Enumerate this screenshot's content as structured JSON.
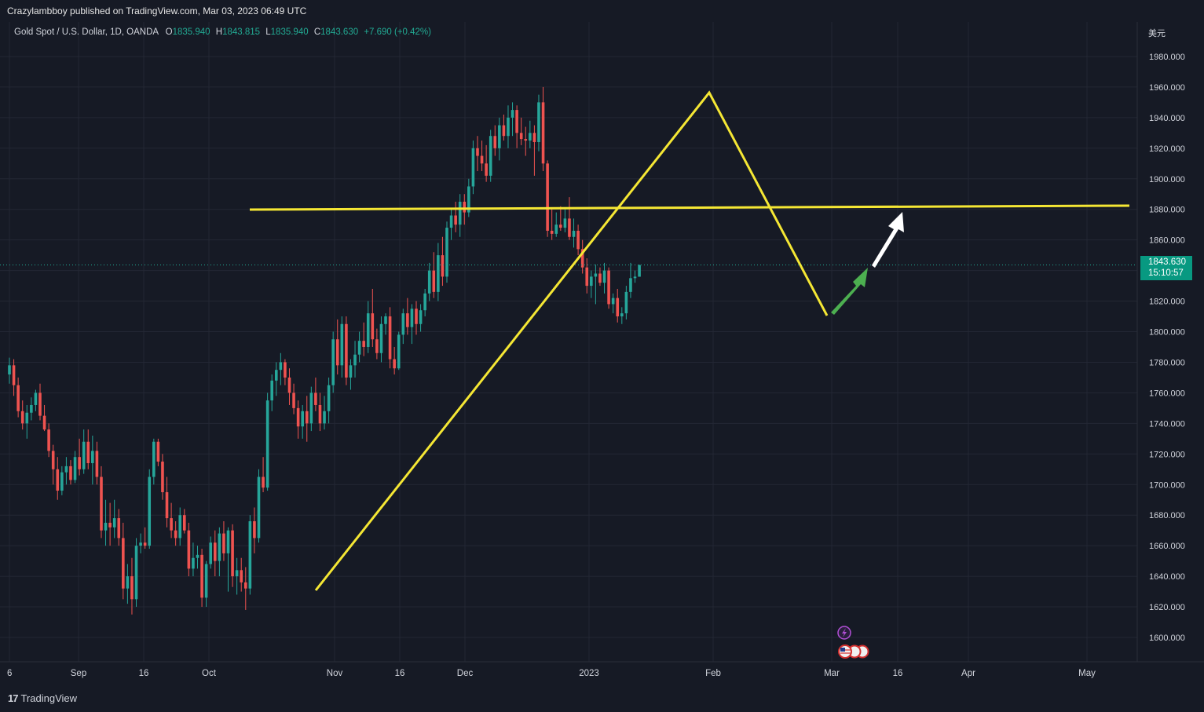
{
  "header": {
    "published": "Crazylambboy published on TradingView.com, Mar 03, 2023 06:49 UTC"
  },
  "legend": {
    "symbol": "Gold Spot / U.S. Dollar, 1D, OANDA",
    "o_label": "O",
    "o_value": "1835.940",
    "h_label": "H",
    "h_value": "1843.815",
    "l_label": "L",
    "l_value": "1835.940",
    "c_label": "C",
    "c_value": "1843.630",
    "change": "+7.690 (+0.42%)"
  },
  "currency_label": "美元",
  "price_badge": {
    "price": "1843.630",
    "countdown": "15:10:57"
  },
  "footer": {
    "logo_text": "TradingView"
  },
  "colors": {
    "background": "#161a25",
    "up": "#26a69a",
    "down": "#ef5350",
    "drawing_yellow": "#f5e734",
    "arrow_green": "#4caf50",
    "arrow_white": "#ffffff",
    "badge": "#089981"
  },
  "events": {
    "icons": [
      "lightning-icon",
      "us-flag-icon",
      "us-flag-icon",
      "us-flag-icon"
    ]
  },
  "chart_data": {
    "type": "candlestick",
    "title": "Gold Spot / U.S. Dollar, 1D, OANDA",
    "grid": true,
    "ylim": [
      1585,
      1992
    ],
    "yticks": [
      "1980.000",
      "1960.000",
      "1940.000",
      "1920.000",
      "1900.000",
      "1880.000",
      "1860.000",
      "1840.000",
      "1820.000",
      "1800.000",
      "1780.000",
      "1760.000",
      "1740.000",
      "1720.000",
      "1700.000",
      "1680.000",
      "1660.000",
      "1640.000",
      "1620.000",
      "1600.000"
    ],
    "xticks": [
      "6",
      "Sep",
      "16",
      "Oct",
      "Nov",
      "16",
      "Dec",
      "2023",
      "Feb",
      "Mar",
      "16",
      "Apr",
      "May"
    ],
    "last_price": 1843.63,
    "candles": [
      {
        "d": "Aug 26",
        "o": 1772,
        "h": 1783,
        "l": 1766,
        "c": 1778
      },
      {
        "d": "Aug 29",
        "o": 1778,
        "h": 1782,
        "l": 1758,
        "c": 1765
      },
      {
        "d": "Aug 30",
        "o": 1765,
        "h": 1770,
        "l": 1744,
        "c": 1748
      },
      {
        "d": "Aug 31",
        "o": 1748,
        "h": 1755,
        "l": 1736,
        "c": 1740
      },
      {
        "d": "Sep 1",
        "o": 1740,
        "h": 1752,
        "l": 1730,
        "c": 1747
      },
      {
        "d": "Sep 2",
        "o": 1747,
        "h": 1757,
        "l": 1742,
        "c": 1752
      },
      {
        "d": "Sep 5",
        "o": 1752,
        "h": 1762,
        "l": 1748,
        "c": 1760
      },
      {
        "d": "Sep 6",
        "o": 1760,
        "h": 1766,
        "l": 1742,
        "c": 1745
      },
      {
        "d": "Sep 7",
        "o": 1745,
        "h": 1752,
        "l": 1735,
        "c": 1736
      },
      {
        "d": "Sep 8",
        "o": 1736,
        "h": 1740,
        "l": 1718,
        "c": 1722
      },
      {
        "d": "Sep 9",
        "o": 1722,
        "h": 1726,
        "l": 1700,
        "c": 1710
      },
      {
        "d": "Sep 12",
        "o": 1710,
        "h": 1718,
        "l": 1690,
        "c": 1696
      },
      {
        "d": "Sep 13",
        "o": 1696,
        "h": 1712,
        "l": 1693,
        "c": 1708
      },
      {
        "d": "Sep 14",
        "o": 1708,
        "h": 1718,
        "l": 1700,
        "c": 1712
      },
      {
        "d": "Sep 15",
        "o": 1712,
        "h": 1716,
        "l": 1700,
        "c": 1703
      },
      {
        "d": "Sep 16",
        "o": 1703,
        "h": 1722,
        "l": 1701,
        "c": 1718
      },
      {
        "d": "Sep 19",
        "o": 1718,
        "h": 1730,
        "l": 1706,
        "c": 1710
      },
      {
        "d": "Sep 20",
        "o": 1710,
        "h": 1736,
        "l": 1707,
        "c": 1728
      },
      {
        "d": "Sep 21",
        "o": 1728,
        "h": 1736,
        "l": 1710,
        "c": 1714
      },
      {
        "d": "Sep 22",
        "o": 1714,
        "h": 1732,
        "l": 1700,
        "c": 1722
      },
      {
        "d": "Sep 23",
        "o": 1722,
        "h": 1728,
        "l": 1700,
        "c": 1705
      },
      {
        "d": "Sep 26",
        "o": 1705,
        "h": 1712,
        "l": 1665,
        "c": 1670
      },
      {
        "d": "Sep 27",
        "o": 1670,
        "h": 1690,
        "l": 1660,
        "c": 1675
      },
      {
        "d": "Sep 28",
        "o": 1675,
        "h": 1688,
        "l": 1660,
        "c": 1672
      },
      {
        "d": "Sep 29",
        "o": 1672,
        "h": 1690,
        "l": 1665,
        "c": 1678
      },
      {
        "d": "Sep 30",
        "o": 1678,
        "h": 1684,
        "l": 1660,
        "c": 1665
      },
      {
        "d": "Oct 3",
        "o": 1665,
        "h": 1675,
        "l": 1625,
        "c": 1632
      },
      {
        "d": "Oct 4",
        "o": 1632,
        "h": 1648,
        "l": 1622,
        "c": 1640
      },
      {
        "d": "Oct 5",
        "o": 1640,
        "h": 1652,
        "l": 1615,
        "c": 1625
      },
      {
        "d": "Oct 6",
        "o": 1625,
        "h": 1665,
        "l": 1620,
        "c": 1660
      },
      {
        "d": "Oct 7",
        "o": 1660,
        "h": 1668,
        "l": 1655,
        "c": 1662
      },
      {
        "d": "Oct 10",
        "o": 1662,
        "h": 1672,
        "l": 1658,
        "c": 1660
      },
      {
        "d": "Oct 11",
        "o": 1660,
        "h": 1710,
        "l": 1658,
        "c": 1705
      },
      {
        "d": "Oct 12",
        "o": 1705,
        "h": 1730,
        "l": 1700,
        "c": 1728
      },
      {
        "d": "Oct 13",
        "o": 1728,
        "h": 1730,
        "l": 1712,
        "c": 1715
      },
      {
        "d": "Oct 14",
        "o": 1715,
        "h": 1720,
        "l": 1690,
        "c": 1695
      },
      {
        "d": "Oct 17",
        "o": 1695,
        "h": 1705,
        "l": 1672,
        "c": 1678
      },
      {
        "d": "Oct 18",
        "o": 1678,
        "h": 1688,
        "l": 1665,
        "c": 1670
      },
      {
        "d": "Oct 19",
        "o": 1670,
        "h": 1676,
        "l": 1660,
        "c": 1665
      },
      {
        "d": "Oct 20",
        "o": 1665,
        "h": 1685,
        "l": 1660,
        "c": 1680
      },
      {
        "d": "Oct 21",
        "o": 1680,
        "h": 1684,
        "l": 1668,
        "c": 1670
      },
      {
        "d": "Oct 24",
        "o": 1670,
        "h": 1675,
        "l": 1640,
        "c": 1645
      },
      {
        "d": "Oct 25",
        "o": 1645,
        "h": 1662,
        "l": 1640,
        "c": 1652
      },
      {
        "d": "Oct 26",
        "o": 1652,
        "h": 1660,
        "l": 1645,
        "c": 1654
      },
      {
        "d": "Oct 27",
        "o": 1654,
        "h": 1658,
        "l": 1620,
        "c": 1626
      },
      {
        "d": "Oct 28",
        "o": 1626,
        "h": 1650,
        "l": 1620,
        "c": 1648
      },
      {
        "d": "Oct 31",
        "o": 1648,
        "h": 1666,
        "l": 1645,
        "c": 1662
      },
      {
        "d": "Nov 1",
        "o": 1662,
        "h": 1670,
        "l": 1640,
        "c": 1650
      },
      {
        "d": "Nov 2",
        "o": 1650,
        "h": 1672,
        "l": 1640,
        "c": 1668
      },
      {
        "d": "Nov 3",
        "o": 1668,
        "h": 1676,
        "l": 1650,
        "c": 1655
      },
      {
        "d": "Nov 4",
        "o": 1655,
        "h": 1672,
        "l": 1630,
        "c": 1670
      },
      {
        "d": "Nov 7",
        "o": 1670,
        "h": 1674,
        "l": 1633,
        "c": 1640
      },
      {
        "d": "Nov 8",
        "o": 1640,
        "h": 1652,
        "l": 1628,
        "c": 1644
      },
      {
        "d": "Nov 9",
        "o": 1644,
        "h": 1652,
        "l": 1630,
        "c": 1636
      },
      {
        "d": "Nov 10",
        "o": 1636,
        "h": 1646,
        "l": 1618,
        "c": 1632
      },
      {
        "d": "Nov 11",
        "o": 1632,
        "h": 1680,
        "l": 1628,
        "c": 1676
      },
      {
        "d": "Nov 14",
        "o": 1676,
        "h": 1685,
        "l": 1655,
        "c": 1665
      },
      {
        "d": "Nov 15",
        "o": 1665,
        "h": 1710,
        "l": 1662,
        "c": 1705
      },
      {
        "d": "Nov 16",
        "o": 1705,
        "h": 1718,
        "l": 1695,
        "c": 1698
      },
      {
        "d": "Nov 17",
        "o": 1698,
        "h": 1760,
        "l": 1696,
        "c": 1755
      },
      {
        "d": "Nov 18",
        "o": 1755,
        "h": 1772,
        "l": 1748,
        "c": 1768
      },
      {
        "d": "Nov 21",
        "o": 1768,
        "h": 1780,
        "l": 1758,
        "c": 1775
      },
      {
        "d": "Nov 22",
        "o": 1775,
        "h": 1786,
        "l": 1765,
        "c": 1780
      },
      {
        "d": "Nov 23",
        "o": 1780,
        "h": 1782,
        "l": 1765,
        "c": 1770
      },
      {
        "d": "Nov 24",
        "o": 1770,
        "h": 1776,
        "l": 1752,
        "c": 1760
      },
      {
        "d": "Nov 25",
        "o": 1760,
        "h": 1766,
        "l": 1746,
        "c": 1750
      },
      {
        "d": "Nov 28",
        "o": 1750,
        "h": 1755,
        "l": 1730,
        "c": 1738
      },
      {
        "d": "Nov 29",
        "o": 1738,
        "h": 1752,
        "l": 1730,
        "c": 1748
      },
      {
        "d": "Nov 30",
        "o": 1748,
        "h": 1758,
        "l": 1728,
        "c": 1740
      },
      {
        "d": "Dec 1",
        "o": 1740,
        "h": 1764,
        "l": 1735,
        "c": 1760
      },
      {
        "d": "Dec 2",
        "o": 1760,
        "h": 1770,
        "l": 1748,
        "c": 1752
      },
      {
        "d": "Dec 5",
        "o": 1752,
        "h": 1760,
        "l": 1735,
        "c": 1740
      },
      {
        "d": "Dec 6",
        "o": 1740,
        "h": 1758,
        "l": 1736,
        "c": 1748
      },
      {
        "d": "Dec 7",
        "o": 1748,
        "h": 1770,
        "l": 1740,
        "c": 1765
      },
      {
        "d": "Dec 8",
        "o": 1765,
        "h": 1800,
        "l": 1760,
        "c": 1795
      },
      {
        "d": "Dec 9",
        "o": 1795,
        "h": 1808,
        "l": 1772,
        "c": 1778
      },
      {
        "d": "Dec 12",
        "o": 1778,
        "h": 1810,
        "l": 1770,
        "c": 1805
      },
      {
        "d": "Dec 13",
        "o": 1805,
        "h": 1810,
        "l": 1765,
        "c": 1770
      },
      {
        "d": "Dec 14",
        "o": 1770,
        "h": 1782,
        "l": 1762,
        "c": 1778
      },
      {
        "d": "Dec 15",
        "o": 1778,
        "h": 1794,
        "l": 1770,
        "c": 1785
      },
      {
        "d": "Dec 16",
        "o": 1785,
        "h": 1800,
        "l": 1780,
        "c": 1794
      },
      {
        "d": "Dec 19",
        "o": 1794,
        "h": 1806,
        "l": 1784,
        "c": 1790
      },
      {
        "d": "Dec 20",
        "o": 1790,
        "h": 1820,
        "l": 1786,
        "c": 1812
      },
      {
        "d": "Dec 21",
        "o": 1812,
        "h": 1828,
        "l": 1790,
        "c": 1795
      },
      {
        "d": "Dec 22",
        "o": 1795,
        "h": 1802,
        "l": 1782,
        "c": 1786
      },
      {
        "d": "Dec 23",
        "o": 1786,
        "h": 1810,
        "l": 1780,
        "c": 1805
      },
      {
        "d": "Dec 26",
        "o": 1805,
        "h": 1812,
        "l": 1798,
        "c": 1810
      },
      {
        "d": "Dec 27",
        "o": 1810,
        "h": 1816,
        "l": 1776,
        "c": 1782
      },
      {
        "d": "Dec 28",
        "o": 1782,
        "h": 1790,
        "l": 1772,
        "c": 1776
      },
      {
        "d": "Dec 29",
        "o": 1776,
        "h": 1800,
        "l": 1775,
        "c": 1798
      },
      {
        "d": "Dec 30",
        "o": 1798,
        "h": 1815,
        "l": 1792,
        "c": 1812
      },
      {
        "d": "Jan 2",
        "o": 1812,
        "h": 1822,
        "l": 1798,
        "c": 1803
      },
      {
        "d": "Jan 3",
        "o": 1803,
        "h": 1818,
        "l": 1792,
        "c": 1815
      },
      {
        "d": "Jan 4",
        "o": 1815,
        "h": 1820,
        "l": 1798,
        "c": 1805
      },
      {
        "d": "Jan 5",
        "o": 1805,
        "h": 1818,
        "l": 1800,
        "c": 1814
      },
      {
        "d": "Jan 6",
        "o": 1814,
        "h": 1828,
        "l": 1810,
        "c": 1825
      },
      {
        "d": "Jan 9",
        "o": 1825,
        "h": 1845,
        "l": 1820,
        "c": 1840
      },
      {
        "d": "Jan 10",
        "o": 1840,
        "h": 1852,
        "l": 1822,
        "c": 1826
      },
      {
        "d": "Jan 11",
        "o": 1826,
        "h": 1858,
        "l": 1820,
        "c": 1850
      },
      {
        "d": "Jan 12",
        "o": 1850,
        "h": 1862,
        "l": 1830,
        "c": 1836
      },
      {
        "d": "Jan 13",
        "o": 1836,
        "h": 1872,
        "l": 1832,
        "c": 1868
      },
      {
        "d": "Jan 16",
        "o": 1868,
        "h": 1880,
        "l": 1860,
        "c": 1876
      },
      {
        "d": "Jan 17",
        "o": 1876,
        "h": 1885,
        "l": 1865,
        "c": 1870
      },
      {
        "d": "Jan 18",
        "o": 1870,
        "h": 1890,
        "l": 1862,
        "c": 1885
      },
      {
        "d": "Jan 19",
        "o": 1885,
        "h": 1890,
        "l": 1870,
        "c": 1878
      },
      {
        "d": "Jan 20",
        "o": 1878,
        "h": 1900,
        "l": 1875,
        "c": 1895
      },
      {
        "d": "Jan 23",
        "o": 1895,
        "h": 1925,
        "l": 1890,
        "c": 1920
      },
      {
        "d": "Jan 24",
        "o": 1920,
        "h": 1928,
        "l": 1905,
        "c": 1915
      },
      {
        "d": "Jan 25",
        "o": 1915,
        "h": 1925,
        "l": 1905,
        "c": 1910
      },
      {
        "d": "Jan 26",
        "o": 1910,
        "h": 1922,
        "l": 1898,
        "c": 1902
      },
      {
        "d": "Jan 27",
        "o": 1902,
        "h": 1932,
        "l": 1898,
        "c": 1928
      },
      {
        "d": "Jan 30",
        "o": 1928,
        "h": 1935,
        "l": 1915,
        "c": 1920
      },
      {
        "d": "Jan 31",
        "o": 1920,
        "h": 1940,
        "l": 1912,
        "c": 1935
      },
      {
        "d": "Feb 1",
        "o": 1935,
        "h": 1942,
        "l": 1925,
        "c": 1928
      },
      {
        "d": "Feb 2",
        "o": 1928,
        "h": 1948,
        "l": 1920,
        "c": 1940
      },
      {
        "d": "Feb 3",
        "o": 1940,
        "h": 1950,
        "l": 1928,
        "c": 1945
      },
      {
        "d": "Feb 6",
        "o": 1945,
        "h": 1948,
        "l": 1920,
        "c": 1930
      },
      {
        "d": "Feb 7",
        "o": 1930,
        "h": 1940,
        "l": 1922,
        "c": 1926
      },
      {
        "d": "Feb 8",
        "o": 1926,
        "h": 1934,
        "l": 1915,
        "c": 1925
      },
      {
        "d": "Feb 9",
        "o": 1925,
        "h": 1938,
        "l": 1920,
        "c": 1930
      },
      {
        "d": "Feb 10",
        "o": 1930,
        "h": 1935,
        "l": 1902,
        "c": 1924
      },
      {
        "d": "Feb 13",
        "o": 1924,
        "h": 1955,
        "l": 1918,
        "c": 1950
      },
      {
        "d": "Feb 14",
        "o": 1950,
        "h": 1960,
        "l": 1905,
        "c": 1910
      },
      {
        "d": "Feb 15",
        "o": 1910,
        "h": 1912,
        "l": 1862,
        "c": 1866
      },
      {
        "d": "Feb 16",
        "o": 1866,
        "h": 1880,
        "l": 1860,
        "c": 1864
      },
      {
        "d": "Feb 17",
        "o": 1864,
        "h": 1878,
        "l": 1862,
        "c": 1870
      },
      {
        "d": "Feb 20",
        "o": 1870,
        "h": 1882,
        "l": 1866,
        "c": 1868
      },
      {
        "d": "Feb 21",
        "o": 1868,
        "h": 1880,
        "l": 1865,
        "c": 1874
      },
      {
        "d": "Feb 22",
        "o": 1874,
        "h": 1888,
        "l": 1860,
        "c": 1862
      },
      {
        "d": "Feb 23",
        "o": 1862,
        "h": 1874,
        "l": 1855,
        "c": 1866
      },
      {
        "d": "Feb 24",
        "o": 1866,
        "h": 1870,
        "l": 1850,
        "c": 1854
      },
      {
        "d": "Feb 27",
        "o": 1854,
        "h": 1860,
        "l": 1838,
        "c": 1842
      },
      {
        "d": "Feb 28",
        "o": 1842,
        "h": 1848,
        "l": 1825,
        "c": 1830
      },
      {
        "d": "Mar 1",
        "o": 1830,
        "h": 1840,
        "l": 1822,
        "c": 1836
      },
      {
        "d": "Mar 2",
        "o": 1836,
        "h": 1844,
        "l": 1818,
        "c": 1838
      },
      {
        "d": "Mar 3",
        "o": 1838,
        "h": 1842,
        "l": 1830,
        "c": 1832
      },
      {
        "d": "Mar 6",
        "o": 1832,
        "h": 1845,
        "l": 1825,
        "c": 1840
      },
      {
        "d": "Mar 7",
        "o": 1840,
        "h": 1842,
        "l": 1815,
        "c": 1818
      },
      {
        "d": "Mar 8",
        "o": 1818,
        "h": 1825,
        "l": 1812,
        "c": 1822
      },
      {
        "d": "Mar 9",
        "o": 1822,
        "h": 1828,
        "l": 1806,
        "c": 1810
      },
      {
        "d": "Mar 10",
        "o": 1810,
        "h": 1816,
        "l": 1805,
        "c": 1812
      },
      {
        "d": "Mar 13",
        "o": 1812,
        "h": 1830,
        "l": 1808,
        "c": 1826
      },
      {
        "d": "Mar 14",
        "o": 1826,
        "h": 1845,
        "l": 1822,
        "c": 1835
      },
      {
        "d": "Mar 15",
        "o": 1835,
        "h": 1840,
        "l": 1832,
        "c": 1836
      },
      {
        "d": "Mar 16",
        "o": 1835.94,
        "h": 1843.815,
        "l": 1835.94,
        "c": 1843.63
      }
    ]
  }
}
